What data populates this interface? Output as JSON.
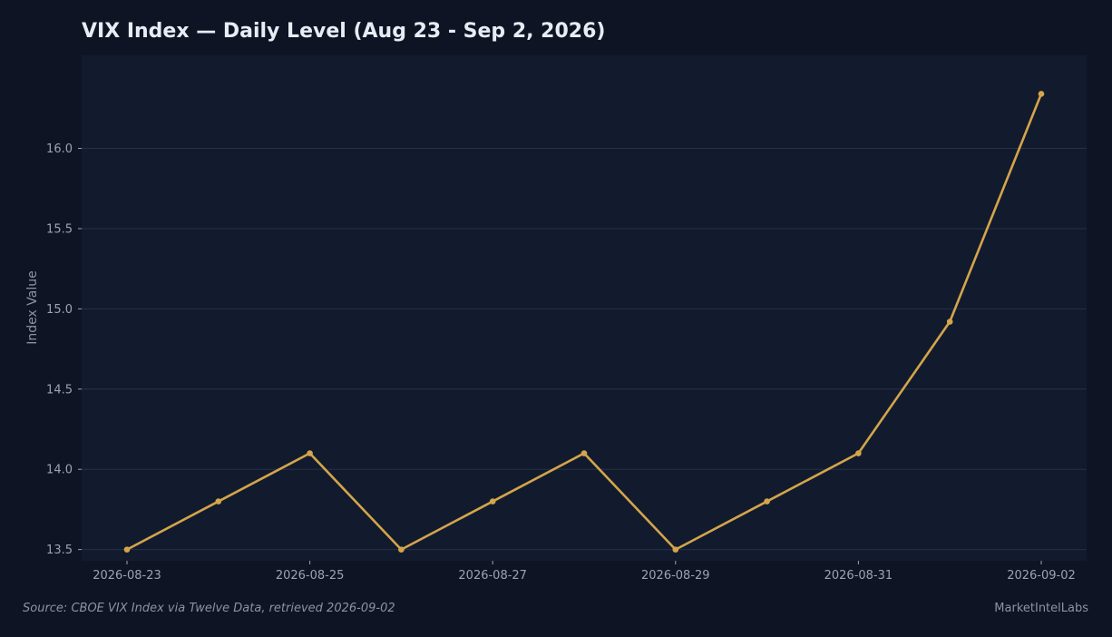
{
  "chart_data": {
    "type": "line",
    "title": "VIX Index — Daily Level (Aug 23 - Sep 2, 2026)",
    "xlabel": "",
    "ylabel": "Index Value",
    "x": [
      "2026-08-23",
      "2026-08-24",
      "2026-08-25",
      "2026-08-26",
      "2026-08-27",
      "2026-08-28",
      "2026-08-29",
      "2026-08-30",
      "2026-08-31",
      "2026-09-01",
      "2026-09-02"
    ],
    "x_tick_labels": [
      "2026-08-23",
      "2026-08-25",
      "2026-08-27",
      "2026-08-29",
      "2026-08-31",
      "2026-09-02"
    ],
    "series": [
      {
        "values": [
          13.5,
          13.8,
          14.1,
          13.5,
          13.8,
          14.1,
          13.5,
          13.8,
          14.1,
          14.92,
          16.34
        ],
        "color": "#d4a54a"
      }
    ],
    "yticks": [
      13.5,
      14.0,
      14.5,
      15.0,
      15.5,
      16.0
    ],
    "ytick_labels": [
      "13.5",
      "14.0",
      "14.5",
      "15.0",
      "15.5",
      "16.0"
    ],
    "ylim": [
      13.43,
      16.58
    ],
    "grid": "horizontal",
    "legend": "none"
  },
  "footer": {
    "source": "Source: CBOE VIX Index via Twelve Data, retrieved 2026-09-02",
    "brand": "MarketIntelLabs"
  },
  "colors": {
    "background": "#0f1424",
    "plot_background": "#121b2e",
    "grid": "#263046",
    "line": "#d4a54a"
  }
}
